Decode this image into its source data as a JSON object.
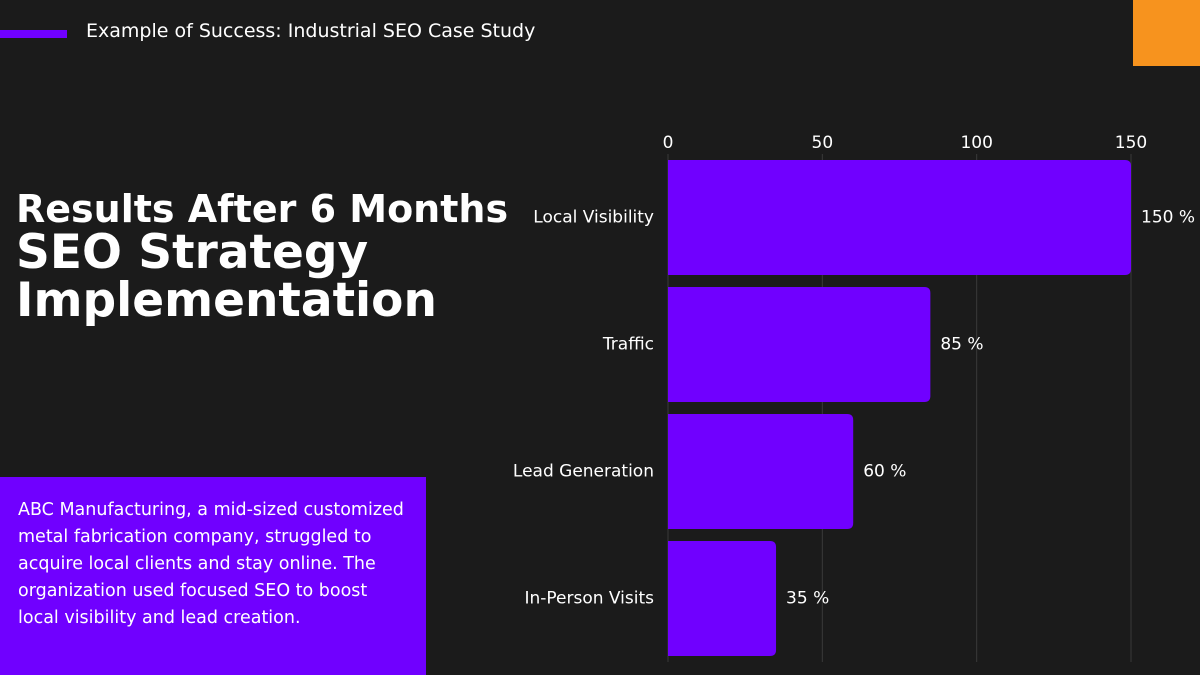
{
  "header": {
    "title": "Example of Success: Industrial SEO Case Study"
  },
  "heading": [
    "Results After 6 Months",
    "SEO Strategy",
    "Implementation"
  ],
  "description": "ABC Manufacturing, a mid-sized customized metal fabrication company, struggled to acquire local clients and stay online. The organization used focused SEO to boost local visibility and lead creation.",
  "chart_data": {
    "type": "bar",
    "orientation": "horizontal",
    "categories": [
      "Local Visibility",
      "Traffic",
      "Lead Generation",
      "In-Person Visits"
    ],
    "values": [
      150,
      85,
      60,
      35
    ],
    "value_labels": [
      "150 %",
      "85 %",
      "60 %",
      "35 %"
    ],
    "color": "#7000ff",
    "xlim": [
      0,
      150
    ],
    "xticks": [
      0,
      50,
      100,
      150
    ],
    "grid": true
  }
}
